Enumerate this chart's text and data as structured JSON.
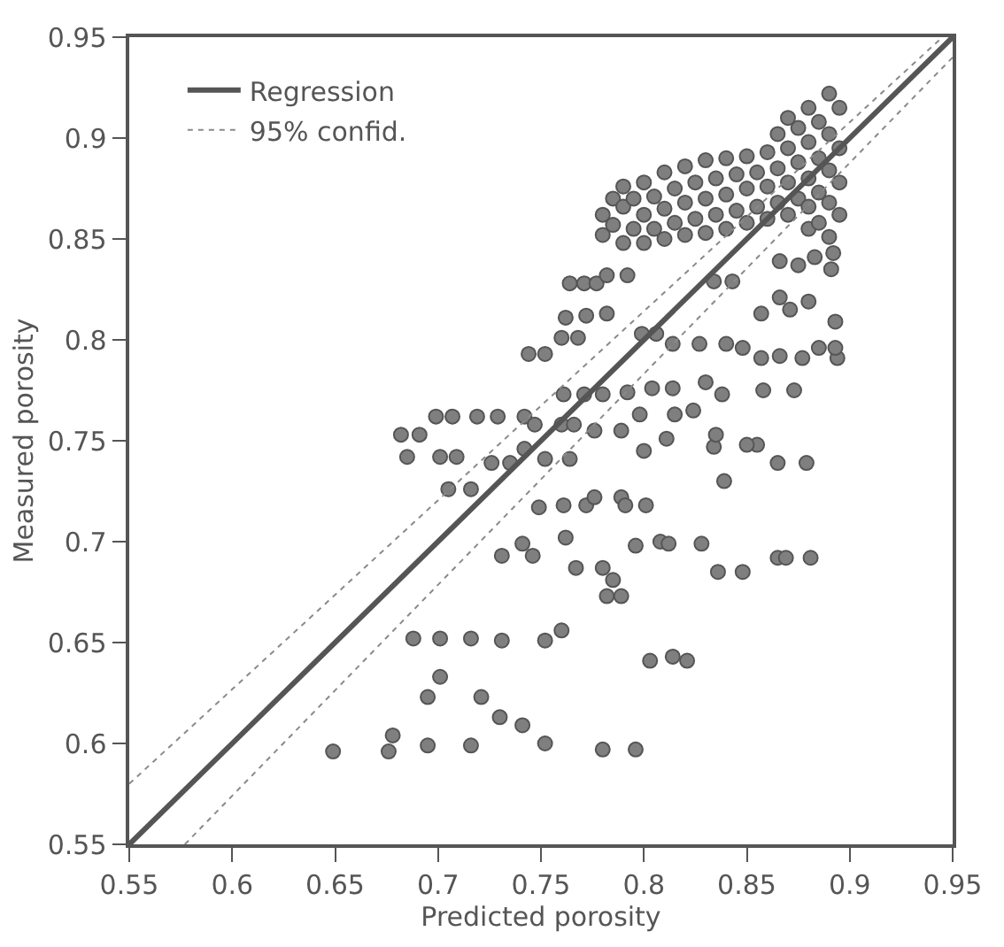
{
  "chart_data": {
    "type": "scatter",
    "xlabel": "Predicted porosity",
    "ylabel": "Measured porosity",
    "xlim": [
      0.55,
      0.95
    ],
    "ylim": [
      0.55,
      0.95
    ],
    "xticks": [
      0.55,
      0.6,
      0.65,
      0.7,
      0.75,
      0.8,
      0.85,
      0.9,
      0.95
    ],
    "yticks": [
      0.55,
      0.6,
      0.65,
      0.7,
      0.75,
      0.8,
      0.85,
      0.9,
      0.95
    ],
    "grid": false,
    "legend": "top left",
    "series": [
      {
        "marker": "circle",
        "color": "#7f7f7f",
        "x": [
          0.649,
          0.676,
          0.678,
          0.695,
          0.716,
          0.752,
          0.78,
          0.796,
          0.695,
          0.701,
          0.721,
          0.73,
          0.741,
          0.688,
          0.701,
          0.716,
          0.731,
          0.752,
          0.76,
          0.803,
          0.814,
          0.821,
          0.731,
          0.741,
          0.746,
          0.762,
          0.767,
          0.78,
          0.785,
          0.782,
          0.789,
          0.796,
          0.808,
          0.812,
          0.828,
          0.836,
          0.848,
          0.865,
          0.869,
          0.881,
          0.749,
          0.761,
          0.772,
          0.776,
          0.789,
          0.791,
          0.801,
          0.685,
          0.701,
          0.709,
          0.705,
          0.716,
          0.726,
          0.735,
          0.742,
          0.752,
          0.764,
          0.8,
          0.839,
          0.865,
          0.879,
          0.834,
          0.855,
          0.682,
          0.691,
          0.699,
          0.707,
          0.719,
          0.729,
          0.742,
          0.747,
          0.76,
          0.766,
          0.776,
          0.789,
          0.761,
          0.771,
          0.78,
          0.792,
          0.804,
          0.814,
          0.83,
          0.838,
          0.858,
          0.873,
          0.798,
          0.815,
          0.824,
          0.835,
          0.85,
          0.811,
          0.744,
          0.752,
          0.76,
          0.768,
          0.799,
          0.806,
          0.814,
          0.827,
          0.84,
          0.848,
          0.857,
          0.866,
          0.877,
          0.885,
          0.894,
          0.893,
          0.762,
          0.772,
          0.782,
          0.857,
          0.871,
          0.88,
          0.893,
          0.866,
          0.764,
          0.771,
          0.777,
          0.782,
          0.792,
          0.834,
          0.843,
          0.866,
          0.875,
          0.883,
          0.892,
          0.891,
          0.78,
          0.78,
          0.785,
          0.785,
          0.79,
          0.79,
          0.79,
          0.795,
          0.795,
          0.8,
          0.8,
          0.8,
          0.805,
          0.805,
          0.81,
          0.81,
          0.81,
          0.815,
          0.815,
          0.82,
          0.82,
          0.82,
          0.825,
          0.825,
          0.83,
          0.83,
          0.83,
          0.835,
          0.835,
          0.84,
          0.84,
          0.84,
          0.845,
          0.845,
          0.85,
          0.85,
          0.85,
          0.855,
          0.855,
          0.86,
          0.86,
          0.86,
          0.865,
          0.865,
          0.865,
          0.87,
          0.87,
          0.87,
          0.87,
          0.875,
          0.875,
          0.875,
          0.88,
          0.88,
          0.88,
          0.88,
          0.88,
          0.885,
          0.885,
          0.885,
          0.885,
          0.89,
          0.89,
          0.89,
          0.89,
          0.89,
          0.895,
          0.895,
          0.895,
          0.895
        ],
        "values": [
          0.596,
          0.596,
          0.604,
          0.599,
          0.599,
          0.6,
          0.597,
          0.597,
          0.623,
          0.633,
          0.623,
          0.613,
          0.609,
          0.652,
          0.652,
          0.652,
          0.651,
          0.651,
          0.656,
          0.641,
          0.643,
          0.641,
          0.693,
          0.699,
          0.693,
          0.702,
          0.687,
          0.687,
          0.681,
          0.673,
          0.673,
          0.698,
          0.7,
          0.699,
          0.699,
          0.685,
          0.685,
          0.692,
          0.692,
          0.692,
          0.717,
          0.718,
          0.718,
          0.722,
          0.722,
          0.718,
          0.718,
          0.742,
          0.742,
          0.742,
          0.726,
          0.726,
          0.739,
          0.739,
          0.746,
          0.741,
          0.741,
          0.745,
          0.73,
          0.739,
          0.739,
          0.747,
          0.748,
          0.753,
          0.753,
          0.762,
          0.762,
          0.762,
          0.762,
          0.762,
          0.758,
          0.758,
          0.758,
          0.755,
          0.755,
          0.773,
          0.773,
          0.773,
          0.774,
          0.776,
          0.776,
          0.779,
          0.773,
          0.775,
          0.775,
          0.763,
          0.763,
          0.765,
          0.753,
          0.748,
          0.751,
          0.793,
          0.793,
          0.801,
          0.801,
          0.803,
          0.803,
          0.798,
          0.798,
          0.798,
          0.796,
          0.791,
          0.792,
          0.791,
          0.796,
          0.791,
          0.796,
          0.811,
          0.812,
          0.813,
          0.813,
          0.815,
          0.819,
          0.809,
          0.821,
          0.828,
          0.828,
          0.828,
          0.832,
          0.832,
          0.829,
          0.829,
          0.839,
          0.837,
          0.841,
          0.843,
          0.835,
          0.852,
          0.862,
          0.87,
          0.857,
          0.848,
          0.866,
          0.876,
          0.855,
          0.87,
          0.862,
          0.878,
          0.848,
          0.871,
          0.855,
          0.883,
          0.865,
          0.85,
          0.875,
          0.858,
          0.886,
          0.868,
          0.852,
          0.878,
          0.86,
          0.889,
          0.87,
          0.853,
          0.88,
          0.862,
          0.89,
          0.872,
          0.855,
          0.882,
          0.864,
          0.891,
          0.875,
          0.858,
          0.883,
          0.866,
          0.893,
          0.876,
          0.86,
          0.902,
          0.885,
          0.868,
          0.91,
          0.895,
          0.878,
          0.862,
          0.905,
          0.888,
          0.87,
          0.915,
          0.898,
          0.88,
          0.866,
          0.855,
          0.908,
          0.89,
          0.873,
          0.858,
          0.922,
          0.902,
          0.884,
          0.868,
          0.851,
          0.915,
          0.895,
          0.878,
          0.862
        ]
      },
      {
        "type": "line",
        "marker": "none",
        "name": "Regression",
        "color": "#555555",
        "line_style": "solid",
        "x": [
          0.55,
          0.95
        ],
        "values": [
          0.55,
          0.95
        ]
      },
      {
        "type": "line",
        "marker": "none",
        "name": "95% confid.",
        "color": "#8a8a8a",
        "line_style": "dotted",
        "x": [
          0.55,
          0.945
        ],
        "values": [
          0.58,
          0.95
        ]
      },
      {
        "type": "line",
        "marker": "none",
        "color": "#8a8a8a",
        "line_style": "dotted",
        "x": [
          0.577,
          0.95
        ],
        "values": [
          0.55,
          0.94
        ]
      }
    ]
  }
}
